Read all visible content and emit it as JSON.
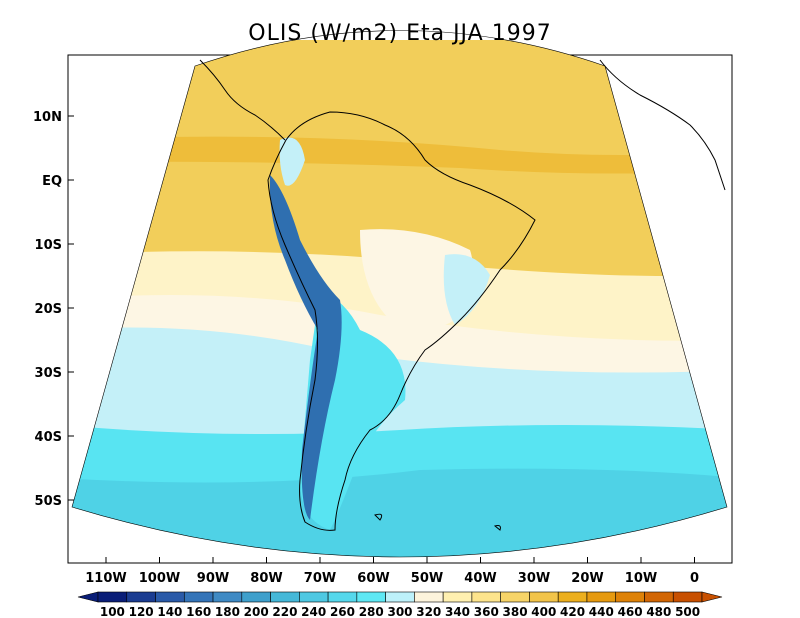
{
  "title": "OLIS (W/m2) Eta JJA 1997",
  "lat_ticks": [
    "10N",
    "EQ",
    "10S",
    "20S",
    "30S",
    "40S",
    "50S"
  ],
  "lon_ticks": [
    "110W",
    "100W",
    "90W",
    "80W",
    "70W",
    "60W",
    "50W",
    "40W",
    "30W",
    "20W",
    "10W",
    "0"
  ],
  "colorbar": {
    "labels": [
      "100",
      "120",
      "140",
      "160",
      "180",
      "200",
      "220",
      "240",
      "260",
      "280",
      "300",
      "320",
      "340",
      "360",
      "380",
      "400",
      "420",
      "440",
      "460",
      "480",
      "500"
    ],
    "colors": [
      "#0a1e78",
      "#1b3c91",
      "#2a5aa8",
      "#3474b8",
      "#3f8ac4",
      "#3fa0cc",
      "#45b8d8",
      "#4ec8e2",
      "#55d8ec",
      "#5ee8f4",
      "#bdf1fa",
      "#fdf4dc",
      "#fff0b0",
      "#fde48c",
      "#f7d468",
      "#f2c44a",
      "#ecaf1e",
      "#e69a10",
      "#de8208",
      "#d26604",
      "#c85000"
    ]
  },
  "palette": {
    "ocean_n": "#f2ce5a",
    "ocean_n_dark": "#eebd3a",
    "ocean_mid": "#fef3c8",
    "ocean_cream": "#fdf6e4",
    "ocean_s1": "#c4f0f8",
    "ocean_s2": "#58e4f2",
    "ocean_s3": "#4fd2e6",
    "andes": "#2f6fb0",
    "coast": "#000000"
  }
}
